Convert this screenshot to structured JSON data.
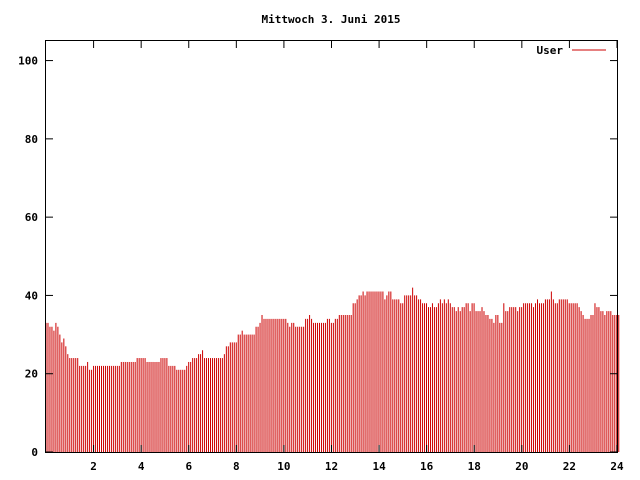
{
  "chart_data": {
    "type": "bar",
    "title": "Mittwoch 3. Juni 2015",
    "xlabel": "",
    "ylabel": "",
    "xlim": [
      0,
      24
    ],
    "ylim": [
      0,
      105
    ],
    "x_ticks": [
      2,
      4,
      6,
      8,
      10,
      12,
      14,
      16,
      18,
      20,
      22,
      24
    ],
    "x_tick_labels": [
      "2",
      "4",
      "6",
      "8",
      "10",
      "12",
      "14",
      "16",
      "18",
      "20",
      "22",
      "24"
    ],
    "y_ticks": [
      0,
      20,
      40,
      60,
      80,
      100
    ],
    "y_tick_labels": [
      "0",
      "20",
      "40",
      "60",
      "80",
      "100"
    ],
    "grid": false,
    "legend_position": "top-right",
    "series": [
      {
        "name": "User",
        "color": "#cc0000",
        "x_start": 0,
        "x_step": 0.0833,
        "values": [
          33,
          33,
          32,
          32,
          31,
          33,
          32,
          30,
          28,
          29,
          27,
          25,
          24,
          24,
          24,
          24,
          24,
          22,
          22,
          22,
          22,
          23,
          21,
          21,
          22,
          22,
          22,
          22,
          22,
          22,
          22,
          22,
          22,
          22,
          22,
          22,
          22,
          22,
          23,
          23,
          23,
          23,
          23,
          23,
          23,
          23,
          24,
          24,
          24,
          24,
          24,
          23,
          23,
          23,
          23,
          23,
          23,
          23,
          24,
          24,
          24,
          24,
          22,
          22,
          22,
          22,
          21,
          21,
          21,
          21,
          21,
          22,
          23,
          23,
          24,
          24,
          24,
          25,
          25,
          26,
          24,
          24,
          24,
          24,
          24,
          24,
          24,
          24,
          24,
          24,
          25,
          27,
          27,
          28,
          28,
          28,
          28,
          30,
          30,
          31,
          30,
          30,
          30,
          30,
          30,
          30,
          32,
          32,
          33,
          35,
          34,
          34,
          34,
          34,
          34,
          34,
          34,
          34,
          34,
          34,
          34,
          34,
          33,
          32,
          33,
          33,
          32,
          32,
          32,
          32,
          32,
          34,
          34,
          35,
          34,
          33,
          33,
          33,
          33,
          33,
          33,
          33,
          34,
          34,
          33,
          33,
          34,
          34,
          35,
          35,
          35,
          35,
          35,
          35,
          35,
          38,
          38,
          39,
          40,
          40,
          41,
          40,
          41,
          41,
          41,
          41,
          41,
          41,
          41,
          41,
          41,
          39,
          40,
          41,
          41,
          39,
          39,
          39,
          39,
          38,
          38,
          40,
          40,
          40,
          40,
          42,
          40,
          40,
          39,
          39,
          38,
          38,
          38,
          37,
          37,
          38,
          37,
          37,
          38,
          39,
          38,
          39,
          38,
          39,
          38,
          37,
          37,
          36,
          37,
          36,
          37,
          37,
          38,
          38,
          36,
          38,
          38,
          36,
          36,
          36,
          37,
          36,
          35,
          35,
          34,
          34,
          33,
          35,
          35,
          33,
          33,
          38,
          36,
          36,
          37,
          37,
          37,
          37,
          36,
          37,
          37,
          38,
          38,
          38,
          38,
          38,
          37,
          38,
          39,
          38,
          38,
          38,
          39,
          39,
          39,
          41,
          39,
          38,
          38,
          39,
          39,
          39,
          39,
          39,
          38,
          38,
          38,
          38,
          38,
          37,
          36,
          35,
          34,
          34,
          34,
          35,
          35,
          38,
          37,
          37,
          36,
          36,
          35,
          36,
          36,
          36,
          35,
          35,
          35,
          35
        ]
      }
    ]
  }
}
